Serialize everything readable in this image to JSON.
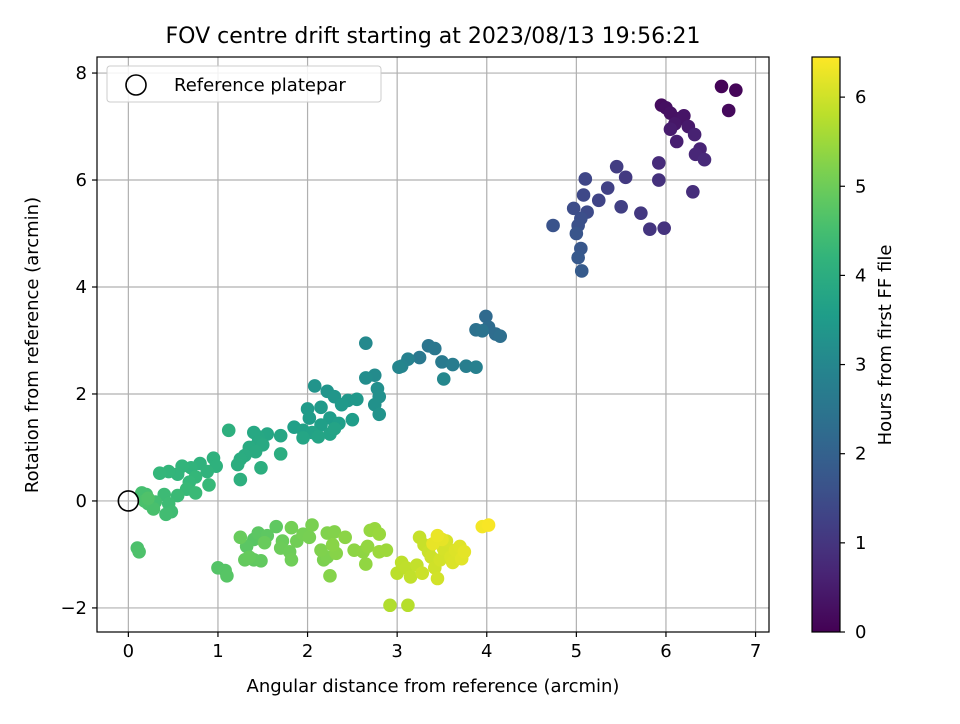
{
  "chart_data": {
    "type": "scatter",
    "title": "FOV centre drift starting at 2023/08/13 19:56:21",
    "xlabel": "Angular distance from reference (arcmin)",
    "ylabel": "Rotation from reference (arcmin)",
    "xlim": [
      -0.35,
      7.15
    ],
    "ylim": [
      -2.45,
      8.3
    ],
    "xticks": [
      0,
      1,
      2,
      3,
      4,
      5,
      6,
      7
    ],
    "yticks": [
      -2,
      0,
      2,
      4,
      6,
      8
    ],
    "grid": true,
    "legend": {
      "position": "top-left",
      "entries": [
        "Reference platepar"
      ]
    },
    "reference_point": {
      "x": 0,
      "y": 0
    },
    "colorbar": {
      "label": "Hours from first FF file",
      "min": 0,
      "max": 6.45,
      "ticks": [
        0,
        1,
        2,
        3,
        4,
        5,
        6
      ],
      "colormap": "viridis"
    },
    "points": [
      {
        "x": 6.62,
        "y": 7.75,
        "t": 0.05
      },
      {
        "x": 6.78,
        "y": 7.68,
        "t": 0.1
      },
      {
        "x": 6.7,
        "y": 7.3,
        "t": 0.15
      },
      {
        "x": 5.95,
        "y": 7.4,
        "t": 0.2
      },
      {
        "x": 6.0,
        "y": 7.35,
        "t": 0.25
      },
      {
        "x": 6.05,
        "y": 7.25,
        "t": 0.3
      },
      {
        "x": 6.15,
        "y": 7.15,
        "t": 0.32
      },
      {
        "x": 6.2,
        "y": 7.2,
        "t": 0.35
      },
      {
        "x": 6.1,
        "y": 7.05,
        "t": 0.4
      },
      {
        "x": 6.25,
        "y": 7.0,
        "t": 0.45
      },
      {
        "x": 6.05,
        "y": 6.95,
        "t": 0.5
      },
      {
        "x": 6.12,
        "y": 6.72,
        "t": 0.55
      },
      {
        "x": 6.32,
        "y": 6.85,
        "t": 0.6
      },
      {
        "x": 6.38,
        "y": 6.58,
        "t": 0.65
      },
      {
        "x": 6.33,
        "y": 6.48,
        "t": 0.7
      },
      {
        "x": 6.43,
        "y": 6.38,
        "t": 0.75
      },
      {
        "x": 5.92,
        "y": 6.32,
        "t": 0.8
      },
      {
        "x": 6.3,
        "y": 5.78,
        "t": 0.85
      },
      {
        "x": 5.92,
        "y": 6.0,
        "t": 0.9
      },
      {
        "x": 5.98,
        "y": 5.1,
        "t": 0.95
      },
      {
        "x": 5.82,
        "y": 5.08,
        "t": 1.0
      },
      {
        "x": 5.72,
        "y": 5.38,
        "t": 1.05
      },
      {
        "x": 5.55,
        "y": 6.05,
        "t": 1.1
      },
      {
        "x": 5.45,
        "y": 6.25,
        "t": 1.15
      },
      {
        "x": 5.5,
        "y": 5.5,
        "t": 1.2
      },
      {
        "x": 5.35,
        "y": 5.85,
        "t": 1.25
      },
      {
        "x": 5.25,
        "y": 5.62,
        "t": 1.3
      },
      {
        "x": 5.1,
        "y": 6.02,
        "t": 1.35
      },
      {
        "x": 5.08,
        "y": 5.72,
        "t": 1.4
      },
      {
        "x": 5.12,
        "y": 5.4,
        "t": 1.45
      },
      {
        "x": 4.97,
        "y": 5.47,
        "t": 1.5
      },
      {
        "x": 5.05,
        "y": 5.28,
        "t": 1.55
      },
      {
        "x": 5.02,
        "y": 5.15,
        "t": 1.6
      },
      {
        "x": 4.74,
        "y": 5.15,
        "t": 1.65
      },
      {
        "x": 5.0,
        "y": 5.0,
        "t": 1.7
      },
      {
        "x": 5.05,
        "y": 4.72,
        "t": 1.75
      },
      {
        "x": 5.02,
        "y": 4.55,
        "t": 1.8
      },
      {
        "x": 5.06,
        "y": 4.3,
        "t": 1.85
      },
      {
        "x": 3.99,
        "y": 3.45,
        "t": 2.2
      },
      {
        "x": 4.02,
        "y": 3.25,
        "t": 2.25
      },
      {
        "x": 4.1,
        "y": 3.12,
        "t": 2.3
      },
      {
        "x": 4.15,
        "y": 3.08,
        "t": 2.35
      },
      {
        "x": 3.88,
        "y": 3.2,
        "t": 2.4
      },
      {
        "x": 3.95,
        "y": 3.18,
        "t": 2.45
      },
      {
        "x": 3.35,
        "y": 2.9,
        "t": 2.5
      },
      {
        "x": 3.42,
        "y": 2.85,
        "t": 2.55
      },
      {
        "x": 3.25,
        "y": 2.68,
        "t": 2.6
      },
      {
        "x": 3.5,
        "y": 2.6,
        "t": 2.65
      },
      {
        "x": 3.62,
        "y": 2.55,
        "t": 2.7
      },
      {
        "x": 3.77,
        "y": 2.52,
        "t": 2.75
      },
      {
        "x": 3.88,
        "y": 2.5,
        "t": 2.8
      },
      {
        "x": 3.12,
        "y": 2.65,
        "t": 2.85
      },
      {
        "x": 3.05,
        "y": 2.52,
        "t": 2.9
      },
      {
        "x": 3.02,
        "y": 2.5,
        "t": 2.95
      },
      {
        "x": 3.52,
        "y": 2.28,
        "t": 3.0
      },
      {
        "x": 2.65,
        "y": 2.95,
        "t": 3.05
      },
      {
        "x": 2.75,
        "y": 2.35,
        "t": 3.1
      },
      {
        "x": 2.65,
        "y": 2.3,
        "t": 3.15
      },
      {
        "x": 2.78,
        "y": 2.1,
        "t": 3.2
      },
      {
        "x": 2.8,
        "y": 1.95,
        "t": 3.22
      },
      {
        "x": 2.75,
        "y": 1.8,
        "t": 3.25
      },
      {
        "x": 2.8,
        "y": 1.62,
        "t": 3.3
      },
      {
        "x": 2.08,
        "y": 2.15,
        "t": 3.32
      },
      {
        "x": 2.22,
        "y": 2.05,
        "t": 3.35
      },
      {
        "x": 2.3,
        "y": 1.95,
        "t": 3.38
      },
      {
        "x": 2.45,
        "y": 1.88,
        "t": 3.4
      },
      {
        "x": 2.55,
        "y": 1.9,
        "t": 3.42
      },
      {
        "x": 2.38,
        "y": 1.8,
        "t": 3.45
      },
      {
        "x": 2.15,
        "y": 1.75,
        "t": 3.47
      },
      {
        "x": 2.0,
        "y": 1.72,
        "t": 3.5
      },
      {
        "x": 2.02,
        "y": 1.55,
        "t": 3.52
      },
      {
        "x": 2.25,
        "y": 1.55,
        "t": 3.55
      },
      {
        "x": 2.5,
        "y": 1.52,
        "t": 3.57
      },
      {
        "x": 2.35,
        "y": 1.45,
        "t": 3.6
      },
      {
        "x": 2.15,
        "y": 1.42,
        "t": 3.62
      },
      {
        "x": 1.85,
        "y": 1.38,
        "t": 3.65
      },
      {
        "x": 1.95,
        "y": 1.32,
        "t": 3.67
      },
      {
        "x": 2.05,
        "y": 1.28,
        "t": 3.7
      },
      {
        "x": 2.25,
        "y": 1.25,
        "t": 3.72
      },
      {
        "x": 2.3,
        "y": 1.35,
        "t": 3.74
      },
      {
        "x": 2.12,
        "y": 1.2,
        "t": 3.76
      },
      {
        "x": 1.95,
        "y": 1.18,
        "t": 3.78
      },
      {
        "x": 1.55,
        "y": 1.25,
        "t": 3.8
      },
      {
        "x": 1.7,
        "y": 1.22,
        "t": 3.82
      },
      {
        "x": 1.45,
        "y": 1.2,
        "t": 3.84
      },
      {
        "x": 1.4,
        "y": 1.28,
        "t": 3.86
      },
      {
        "x": 1.45,
        "y": 1.1,
        "t": 3.88
      },
      {
        "x": 1.5,
        "y": 1.05,
        "t": 3.9
      },
      {
        "x": 1.35,
        "y": 1.0,
        "t": 3.92
      },
      {
        "x": 1.42,
        "y": 0.92,
        "t": 3.94
      },
      {
        "x": 1.3,
        "y": 0.85,
        "t": 3.96
      },
      {
        "x": 1.25,
        "y": 0.78,
        "t": 3.98
      },
      {
        "x": 1.7,
        "y": 0.88,
        "t": 4.0
      },
      {
        "x": 1.22,
        "y": 0.68,
        "t": 4.02
      },
      {
        "x": 1.48,
        "y": 0.62,
        "t": 4.04
      },
      {
        "x": 1.12,
        "y": 1.32,
        "t": 4.06
      },
      {
        "x": 1.25,
        "y": 0.4,
        "t": 4.08
      },
      {
        "x": 0.95,
        "y": 0.8,
        "t": 4.1
      },
      {
        "x": 0.98,
        "y": 0.65,
        "t": 4.12
      },
      {
        "x": 0.8,
        "y": 0.7,
        "t": 4.14
      },
      {
        "x": 0.88,
        "y": 0.55,
        "t": 4.16
      },
      {
        "x": 0.7,
        "y": 0.62,
        "t": 4.18
      },
      {
        "x": 0.6,
        "y": 0.65,
        "t": 4.2
      },
      {
        "x": 0.55,
        "y": 0.5,
        "t": 4.22
      },
      {
        "x": 0.45,
        "y": 0.55,
        "t": 4.24
      },
      {
        "x": 0.35,
        "y": 0.52,
        "t": 4.26
      },
      {
        "x": 0.75,
        "y": 0.45,
        "t": 4.28
      },
      {
        "x": 0.68,
        "y": 0.35,
        "t": 4.3
      },
      {
        "x": 0.9,
        "y": 0.3,
        "t": 4.32
      },
      {
        "x": 0.65,
        "y": 0.22,
        "t": 4.34
      },
      {
        "x": 0.75,
        "y": 0.15,
        "t": 4.36
      },
      {
        "x": 0.55,
        "y": 0.1,
        "t": 4.38
      },
      {
        "x": 0.4,
        "y": 0.12,
        "t": 4.4
      },
      {
        "x": 0.45,
        "y": -0.05,
        "t": 4.42
      },
      {
        "x": 0.48,
        "y": -0.2,
        "t": 4.44
      },
      {
        "x": 0.42,
        "y": -0.25,
        "t": 4.46
      },
      {
        "x": 0.3,
        "y": -0.02,
        "t": 4.48
      },
      {
        "x": 0.2,
        "y": 0.12,
        "t": 4.5
      },
      {
        "x": 0.15,
        "y": 0.15,
        "t": 4.52
      },
      {
        "x": 0.22,
        "y": -0.05,
        "t": 4.54
      },
      {
        "x": 0.28,
        "y": -0.15,
        "t": 4.56
      },
      {
        "x": 0.18,
        "y": 0.0,
        "t": 4.58
      },
      {
        "x": 0.1,
        "y": -0.88,
        "t": 4.6
      },
      {
        "x": 0.12,
        "y": -0.95,
        "t": 4.62
      },
      {
        "x": 0.22,
        "y": 0.05,
        "t": 4.64
      },
      {
        "x": 1.0,
        "y": -1.25,
        "t": 4.7
      },
      {
        "x": 1.08,
        "y": -1.3,
        "t": 4.72
      },
      {
        "x": 1.1,
        "y": -1.4,
        "t": 4.74
      },
      {
        "x": 1.4,
        "y": -0.72,
        "t": 4.76
      },
      {
        "x": 1.32,
        "y": -0.85,
        "t": 4.78
      },
      {
        "x": 1.45,
        "y": -0.6,
        "t": 4.8
      },
      {
        "x": 1.55,
        "y": -0.65,
        "t": 4.82
      },
      {
        "x": 1.65,
        "y": -0.48,
        "t": 4.84
      },
      {
        "x": 1.4,
        "y": -1.1,
        "t": 4.86
      },
      {
        "x": 1.48,
        "y": -1.12,
        "t": 4.88
      },
      {
        "x": 1.3,
        "y": -1.1,
        "t": 4.9
      },
      {
        "x": 1.35,
        "y": -1.05,
        "t": 4.92
      },
      {
        "x": 1.25,
        "y": -0.68,
        "t": 4.94
      },
      {
        "x": 1.52,
        "y": -0.78,
        "t": 4.96
      },
      {
        "x": 1.72,
        "y": -0.75,
        "t": 4.98
      },
      {
        "x": 1.7,
        "y": -0.88,
        "t": 5.0
      },
      {
        "x": 1.8,
        "y": -0.95,
        "t": 5.02
      },
      {
        "x": 1.82,
        "y": -1.1,
        "t": 5.04
      },
      {
        "x": 1.88,
        "y": -0.75,
        "t": 5.06
      },
      {
        "x": 1.82,
        "y": -0.5,
        "t": 5.08
      },
      {
        "x": 1.95,
        "y": -0.62,
        "t": 5.1
      },
      {
        "x": 2.02,
        "y": -0.68,
        "t": 5.12
      },
      {
        "x": 2.05,
        "y": -0.45,
        "t": 5.14
      },
      {
        "x": 2.18,
        "y": -1.1,
        "t": 5.16
      },
      {
        "x": 2.22,
        "y": -1.05,
        "t": 5.18
      },
      {
        "x": 2.15,
        "y": -0.92,
        "t": 5.2
      },
      {
        "x": 2.22,
        "y": -0.6,
        "t": 5.22
      },
      {
        "x": 2.3,
        "y": -0.58,
        "t": 5.24
      },
      {
        "x": 2.25,
        "y": -1.4,
        "t": 5.26
      },
      {
        "x": 2.32,
        "y": -0.98,
        "t": 5.28
      },
      {
        "x": 2.28,
        "y": -0.82,
        "t": 5.3
      },
      {
        "x": 2.42,
        "y": -0.68,
        "t": 5.32
      },
      {
        "x": 2.52,
        "y": -0.92,
        "t": 5.34
      },
      {
        "x": 2.62,
        "y": -0.95,
        "t": 5.36
      },
      {
        "x": 2.65,
        "y": -1.18,
        "t": 5.38
      },
      {
        "x": 2.67,
        "y": -0.85,
        "t": 5.4
      },
      {
        "x": 2.7,
        "y": -0.55,
        "t": 5.42
      },
      {
        "x": 2.75,
        "y": -0.52,
        "t": 5.44
      },
      {
        "x": 2.8,
        "y": -0.62,
        "t": 5.46
      },
      {
        "x": 2.8,
        "y": -0.95,
        "t": 5.48
      },
      {
        "x": 2.88,
        "y": -0.92,
        "t": 5.5
      },
      {
        "x": 2.92,
        "y": -1.95,
        "t": 5.7
      },
      {
        "x": 3.12,
        "y": -1.95,
        "t": 5.75
      },
      {
        "x": 3.0,
        "y": -1.35,
        "t": 5.8
      },
      {
        "x": 3.05,
        "y": -1.15,
        "t": 5.82
      },
      {
        "x": 3.1,
        "y": -1.25,
        "t": 5.84
      },
      {
        "x": 3.15,
        "y": -1.42,
        "t": 5.86
      },
      {
        "x": 3.22,
        "y": -1.2,
        "t": 5.88
      },
      {
        "x": 3.25,
        "y": -0.68,
        "t": 5.9
      },
      {
        "x": 3.3,
        "y": -0.82,
        "t": 5.92
      },
      {
        "x": 3.35,
        "y": -0.95,
        "t": 5.94
      },
      {
        "x": 3.28,
        "y": -1.35,
        "t": 5.96
      },
      {
        "x": 3.38,
        "y": -1.05,
        "t": 5.98
      },
      {
        "x": 3.42,
        "y": -1.25,
        "t": 6.0
      },
      {
        "x": 3.45,
        "y": -1.45,
        "t": 6.02
      },
      {
        "x": 3.48,
        "y": -1.1,
        "t": 6.04
      },
      {
        "x": 3.52,
        "y": -0.9,
        "t": 6.06
      },
      {
        "x": 3.55,
        "y": -0.75,
        "t": 6.08
      },
      {
        "x": 3.6,
        "y": -1.05,
        "t": 6.1
      },
      {
        "x": 3.62,
        "y": -1.15,
        "t": 6.12
      },
      {
        "x": 3.65,
        "y": -0.92,
        "t": 6.14
      },
      {
        "x": 3.7,
        "y": -0.85,
        "t": 6.16
      },
      {
        "x": 3.72,
        "y": -1.08,
        "t": 6.18
      },
      {
        "x": 3.75,
        "y": -0.95,
        "t": 6.2
      },
      {
        "x": 3.5,
        "y": -0.72,
        "t": 6.22
      },
      {
        "x": 3.4,
        "y": -0.8,
        "t": 6.24
      },
      {
        "x": 3.45,
        "y": -0.65,
        "t": 6.26
      },
      {
        "x": 3.95,
        "y": -0.48,
        "t": 6.35
      },
      {
        "x": 4.02,
        "y": -0.45,
        "t": 6.4
      }
    ]
  }
}
